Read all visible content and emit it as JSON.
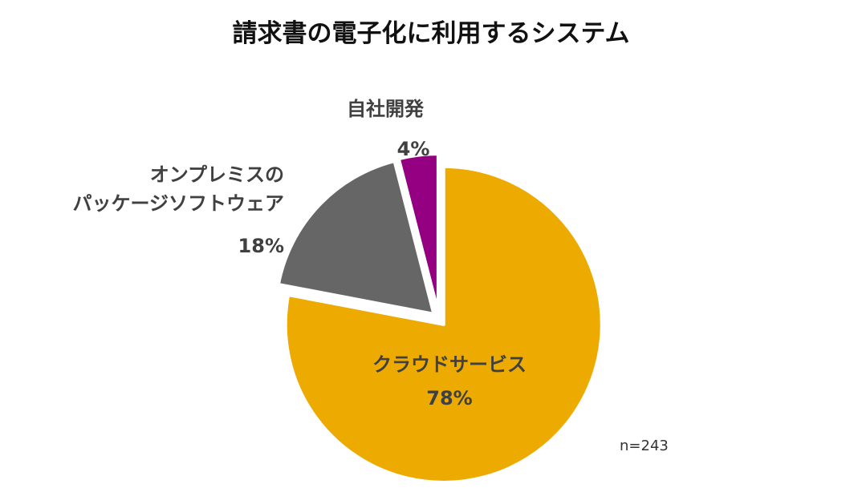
{
  "chart_data": {
    "type": "pie",
    "title": "請求書の電子化に利用するシステム",
    "slices": [
      {
        "label_lines": [
          "クラウドサービス"
        ],
        "value": 78,
        "value_label": "78%",
        "color": "#EDAA00"
      },
      {
        "label_lines": [
          "オンプレミスの",
          "パッケージソフトウェア"
        ],
        "value": 18,
        "value_label": "18%",
        "color": "#666666"
      },
      {
        "label_lines": [
          "自社開発"
        ],
        "value": 4,
        "value_label": "4%",
        "color": "#950083"
      }
    ],
    "start_angle_deg": 0,
    "direction": "clockwise",
    "exploded": true,
    "note": "n=243"
  }
}
